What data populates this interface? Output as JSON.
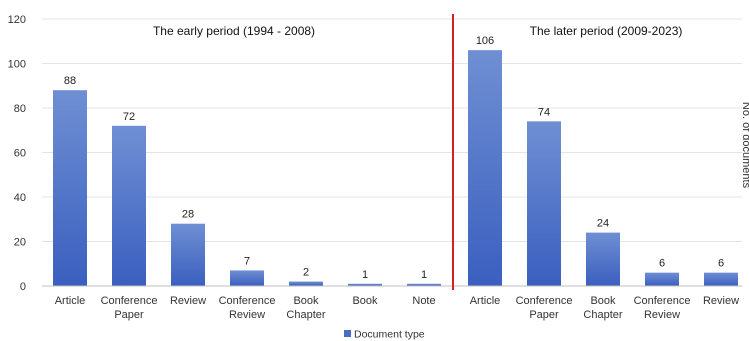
{
  "chart_data": {
    "type": "bar",
    "ylabel": "No. of documents",
    "ylim": [
      0,
      120
    ],
    "yticks": [
      0,
      20,
      40,
      60,
      80,
      100,
      120
    ],
    "grid": true,
    "legend": {
      "entries": [
        "Document type"
      ],
      "placement": "bottom-center"
    },
    "colors": {
      "bar_top": "#6f8fd3",
      "bar_bottom": "#3a5fbf",
      "divider": "#d62020",
      "grid": "#e4e4e4",
      "axis": "#bfbfbf",
      "legend_swatch": "#4a6cc6"
    },
    "panels": [
      {
        "title": "The early period (1994 - 2008)",
        "series": [
          {
            "name": "Document type",
            "categories": [
              [
                "Article"
              ],
              [
                "Conference",
                "Paper"
              ],
              [
                "Review"
              ],
              [
                "Conference",
                "Review"
              ],
              [
                "Book",
                "Chapter"
              ],
              [
                "Book"
              ],
              [
                "Note"
              ]
            ],
            "values": [
              88,
              72,
              28,
              7,
              2,
              1,
              1
            ]
          }
        ]
      },
      {
        "title": "The later period (2009-2023)",
        "series": [
          {
            "name": "Document type",
            "categories": [
              [
                "Article"
              ],
              [
                "Conference",
                "Paper"
              ],
              [
                "Book",
                "Chapter"
              ],
              [
                "Conference",
                "Review"
              ],
              [
                "Review"
              ]
            ],
            "values": [
              106,
              74,
              24,
              6,
              6
            ]
          }
        ]
      }
    ]
  }
}
